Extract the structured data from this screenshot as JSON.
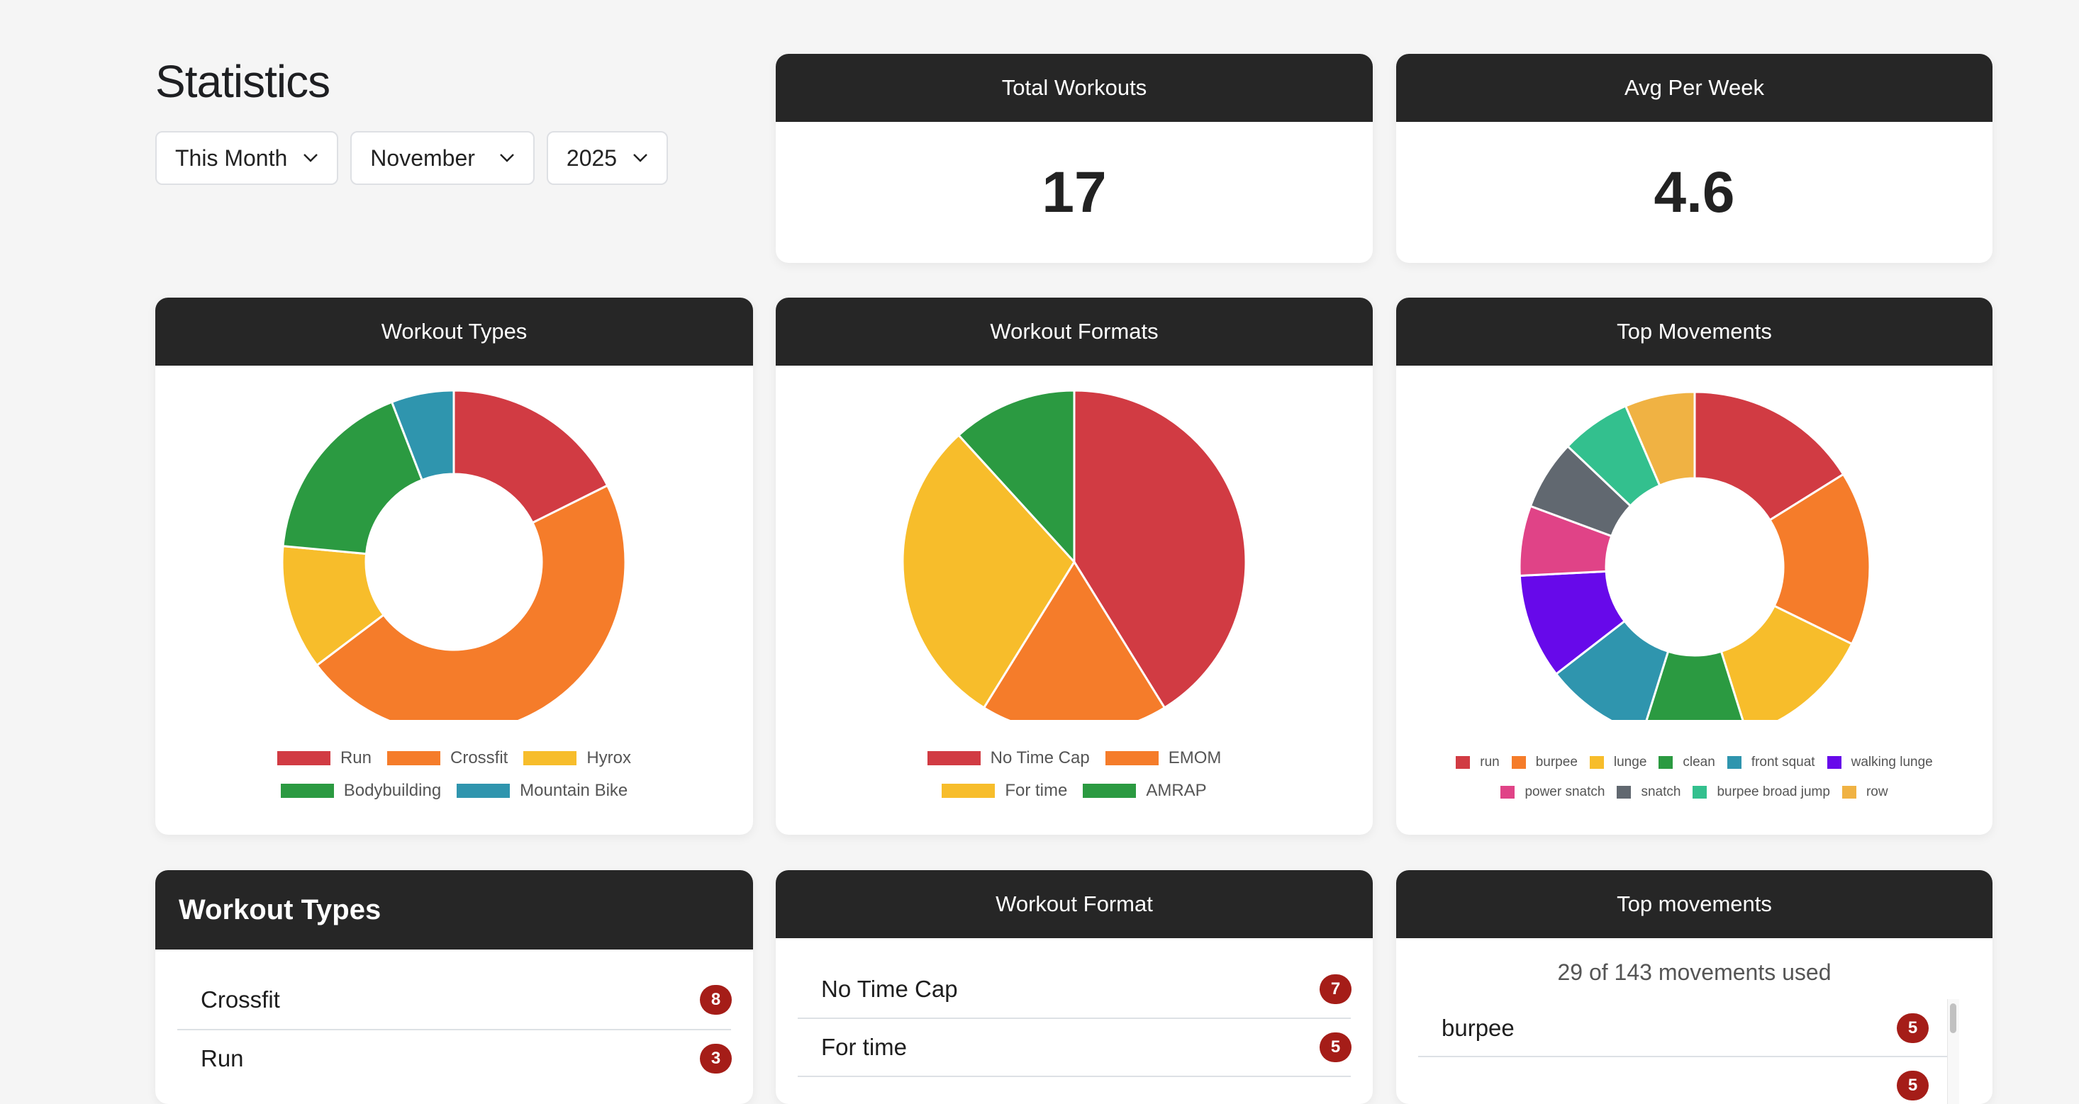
{
  "page_title": "Statistics",
  "filters": {
    "period": "This Month",
    "month": "November",
    "year": "2025"
  },
  "summary": [
    {
      "label": "Total Workouts",
      "value": "17"
    },
    {
      "label": "Avg Per Week",
      "value": "4.6"
    }
  ],
  "chart_data": [
    {
      "type": "pie",
      "variant": "doughnut",
      "title": "Workout Types",
      "legend": "bottom",
      "categories": [
        "Run",
        "Crossfit",
        "Hyrox",
        "Bodybuilding",
        "Mountain Bike"
      ],
      "values": [
        3,
        8,
        2,
        3,
        1
      ],
      "colors": [
        "#d13b43",
        "#f57c2a",
        "#f7bd2b",
        "#2b9a41",
        "#2f95ae"
      ]
    },
    {
      "type": "pie",
      "title": "Workout Formats",
      "legend": "bottom",
      "categories": [
        "No Time Cap",
        "EMOM",
        "For time",
        "AMRAP"
      ],
      "values": [
        7,
        3,
        5,
        2
      ],
      "colors": [
        "#d13b43",
        "#f57c2a",
        "#f7bd2b",
        "#2b9a41"
      ]
    },
    {
      "type": "pie",
      "variant": "doughnut",
      "title": "Top Movements",
      "legend": "bottom",
      "categories": [
        "run",
        "burpee",
        "lunge",
        "clean",
        "front squat",
        "walking lunge",
        "power snatch",
        "snatch",
        "burpee broad jump",
        "row"
      ],
      "values": [
        5,
        5,
        4,
        3,
        3,
        3,
        2,
        2,
        2,
        2
      ],
      "colors": [
        "#d13b43",
        "#f57c2a",
        "#f7bd2b",
        "#2b9a41",
        "#2f95ae",
        "#6709ea",
        "#e04387",
        "#616870",
        "#33c08e",
        "#f0b243"
      ]
    }
  ],
  "lists": {
    "types": {
      "title": "Workout Types",
      "items": [
        {
          "label": "Crossfit",
          "count": "8"
        },
        {
          "label": "Run",
          "count": "3"
        }
      ]
    },
    "formats": {
      "title": "Workout Format",
      "items": [
        {
          "label": "No Time Cap",
          "count": "7"
        },
        {
          "label": "For time",
          "count": "5"
        }
      ]
    },
    "movements": {
      "title": "Top movements",
      "subtitle": "29 of 143 movements used",
      "items": [
        {
          "label": "burpee",
          "count": "5"
        },
        {
          "label": "",
          "count": "5"
        }
      ]
    }
  }
}
